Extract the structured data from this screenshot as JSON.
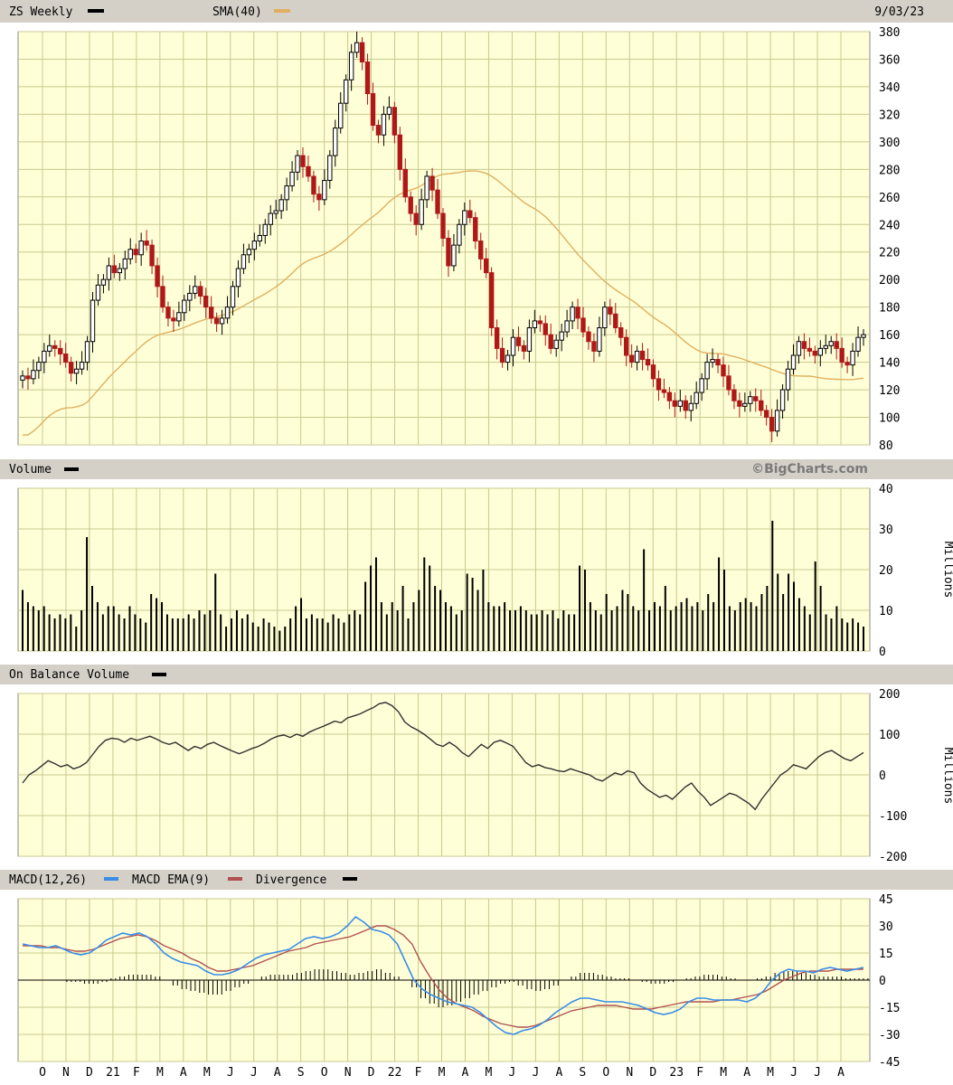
{
  "header": {
    "symbol_label": "ZS Weekly",
    "sma_label": "SMA(40)",
    "date": "9/03/23",
    "watermark": "©BigCharts.com"
  },
  "colors": {
    "up": "#000000",
    "down": "#b01818",
    "sma": "#e0b060",
    "macd": "#3a8de6",
    "macd_ema": "#b05050",
    "plot_bg": "#ffffd7",
    "grid": "#c8c890",
    "header_bg": "#d4d0c8"
  },
  "chart_data": [
    {
      "type": "candlestick",
      "title": "ZS Weekly",
      "series_names": [
        "ZS Weekly",
        "SMA(40)"
      ],
      "ylim": [
        80,
        380
      ],
      "yticks": [
        80,
        100,
        120,
        140,
        160,
        180,
        200,
        220,
        240,
        260,
        280,
        300,
        320,
        340,
        360,
        380
      ],
      "x_month_labels": [
        "O",
        "N",
        "D",
        "21",
        "F",
        "M",
        "A",
        "M",
        "J",
        "J",
        "A",
        "S",
        "O",
        "N",
        "D",
        "22",
        "F",
        "M",
        "A",
        "M",
        "J",
        "J",
        "A",
        "S",
        "O",
        "N",
        "D",
        "23",
        "F",
        "M",
        "A",
        "M",
        "J",
        "J",
        "A"
      ],
      "close_approx": [
        130,
        128,
        134,
        140,
        148,
        152,
        150,
        146,
        140,
        132,
        135,
        140,
        155,
        185,
        196,
        200,
        210,
        205,
        208,
        215,
        222,
        218,
        228,
        225,
        210,
        195,
        180,
        172,
        170,
        176,
        185,
        190,
        195,
        188,
        180,
        172,
        168,
        172,
        180,
        195,
        208,
        218,
        222,
        228,
        232,
        240,
        248,
        250,
        258,
        268,
        278,
        290,
        282,
        275,
        262,
        258,
        272,
        290,
        310,
        328,
        345,
        365,
        372,
        358,
        335,
        312,
        305,
        320,
        325,
        305,
        280,
        260,
        248,
        240,
        258,
        275,
        265,
        248,
        230,
        210,
        225,
        240,
        250,
        245,
        228,
        215,
        205,
        165,
        150,
        140,
        145,
        158,
        152,
        148,
        165,
        170,
        168,
        160,
        150,
        156,
        162,
        170,
        180,
        172,
        162,
        155,
        148,
        165,
        180,
        175,
        165,
        158,
        145,
        140,
        148,
        142,
        138,
        128,
        120,
        118,
        112,
        108,
        112,
        105,
        110,
        118,
        128,
        140,
        142,
        138,
        130,
        120,
        112,
        108,
        110,
        115,
        112,
        105,
        100,
        90,
        105,
        120,
        135,
        145,
        155,
        150,
        148,
        145,
        150,
        152,
        155,
        150,
        140,
        138,
        148,
        158,
        160
      ]
    },
    {
      "type": "bar",
      "title": "Volume",
      "ylabel": "Millions",
      "ylim": [
        0,
        40
      ],
      "yticks": [
        0,
        10,
        20,
        30,
        40
      ],
      "values_approx": [
        15,
        12,
        11,
        10,
        11,
        9,
        8,
        9,
        8,
        9,
        6,
        10,
        28,
        16,
        12,
        9,
        11,
        11,
        9,
        8,
        11,
        9,
        8,
        7,
        14,
        13,
        12,
        9,
        8,
        8,
        8,
        9,
        8,
        10,
        9,
        10,
        19,
        9,
        6,
        8,
        10,
        8,
        9,
        7,
        6,
        8,
        7,
        6,
        5,
        6,
        8,
        11,
        13,
        8,
        9,
        8,
        8,
        7,
        9,
        8,
        7,
        9,
        10,
        9,
        17,
        21,
        23,
        12,
        9,
        12,
        10,
        16,
        8,
        12,
        15,
        23,
        21,
        16,
        15,
        12,
        11,
        9,
        10,
        19,
        18,
        15,
        20,
        12,
        11,
        11,
        12,
        10,
        10,
        11,
        10,
        9,
        9,
        10,
        9,
        10,
        8,
        10,
        9,
        9,
        21,
        20,
        12,
        10,
        9,
        14,
        10,
        11,
        15,
        14,
        11,
        10,
        25,
        10,
        12,
        11,
        16,
        10,
        11,
        12,
        13,
        11,
        12,
        10,
        14,
        12,
        23,
        20,
        11,
        10,
        12,
        13,
        12,
        11,
        14,
        16,
        32,
        19,
        14,
        19,
        17,
        13,
        11,
        9,
        22,
        16,
        9,
        8,
        11,
        8,
        7,
        8,
        7,
        6
      ]
    },
    {
      "type": "line",
      "title": "On Balance Volume",
      "ylabel": "Millions",
      "ylim": [
        -200,
        200
      ],
      "yticks": [
        -200,
        -100,
        0,
        100,
        200
      ],
      "values_approx": [
        -20,
        0,
        10,
        22,
        35,
        28,
        20,
        25,
        15,
        20,
        30,
        50,
        70,
        85,
        90,
        88,
        80,
        90,
        85,
        90,
        95,
        88,
        80,
        75,
        80,
        70,
        60,
        70,
        65,
        75,
        80,
        72,
        65,
        58,
        52,
        58,
        65,
        70,
        78,
        88,
        95,
        98,
        92,
        100,
        95,
        105,
        112,
        118,
        125,
        132,
        128,
        140,
        145,
        150,
        158,
        165,
        175,
        178,
        170,
        155,
        130,
        118,
        110,
        100,
        88,
        75,
        70,
        80,
        70,
        55,
        45,
        60,
        75,
        65,
        80,
        85,
        78,
        70,
        50,
        30,
        20,
        25,
        18,
        15,
        10,
        8,
        15,
        10,
        5,
        0,
        -10,
        -15,
        -5,
        5,
        0,
        10,
        5,
        -20,
        -35,
        -45,
        -55,
        -50,
        -60,
        -45,
        -30,
        -20,
        -40,
        -55,
        -75,
        -65,
        -55,
        -45,
        -50,
        -60,
        -70,
        -85,
        -60,
        -40,
        -20,
        0,
        10,
        25,
        20,
        15,
        30,
        45,
        55,
        60,
        50,
        40,
        35,
        45,
        55
      ]
    },
    {
      "type": "line",
      "title": "MACD(12,26)",
      "series_names": [
        "MACD(12,26)",
        "MACD EMA(9)",
        "Divergence"
      ],
      "ylim": [
        -45,
        45
      ],
      "yticks": [
        -45,
        -30,
        -15,
        0,
        15,
        30,
        45
      ],
      "macd_approx": [
        20,
        19,
        18,
        18,
        19,
        17,
        15,
        14,
        15,
        18,
        22,
        24,
        26,
        25,
        26,
        24,
        20,
        15,
        12,
        10,
        9,
        8,
        5,
        3,
        3,
        4,
        6,
        9,
        12,
        14,
        15,
        16,
        17,
        20,
        23,
        24,
        23,
        24,
        26,
        30,
        35,
        32,
        28,
        27,
        25,
        20,
        10,
        0,
        -5,
        -8,
        -10,
        -12,
        -13,
        -14,
        -15,
        -18,
        -22,
        -26,
        -29,
        -30,
        -28,
        -27,
        -25,
        -22,
        -18,
        -15,
        -12,
        -10,
        -10,
        -11,
        -12,
        -12,
        -12,
        -13,
        -14,
        -16,
        -18,
        -19,
        -18,
        -16,
        -12,
        -10,
        -10,
        -11,
        -11,
        -11,
        -11,
        -12,
        -10,
        -6,
        0,
        4,
        6,
        5,
        5,
        4,
        6,
        7,
        6,
        5,
        6,
        7
      ],
      "ema_approx": [
        19,
        19,
        19,
        18,
        18,
        17,
        16,
        16,
        17,
        19,
        21,
        23,
        24,
        25,
        24,
        22,
        19,
        17,
        15,
        12,
        10,
        7,
        5,
        5,
        6,
        7,
        8,
        10,
        12,
        14,
        16,
        17,
        18,
        20,
        21,
        22,
        23,
        24,
        26,
        28,
        30,
        30,
        28,
        25,
        20,
        10,
        2,
        -5,
        -10,
        -13,
        -15,
        -17,
        -20,
        -22,
        -24,
        -25,
        -26,
        -26,
        -25,
        -23,
        -21,
        -19,
        -17,
        -16,
        -15,
        -14,
        -14,
        -14,
        -15,
        -16,
        -16,
        -16,
        -15,
        -14,
        -13,
        -12,
        -12,
        -12,
        -12,
        -11,
        -11,
        -10,
        -9,
        -8,
        -6,
        -3,
        0,
        2,
        4,
        5,
        5,
        5,
        6,
        6,
        6,
        6
      ],
      "divergence_approx": [
        0,
        0,
        0,
        0,
        0,
        -1,
        -1,
        -2,
        -2,
        -1,
        1,
        2,
        3,
        3,
        3,
        2,
        0,
        -3,
        -5,
        -6,
        -7,
        -8,
        -8,
        -6,
        -4,
        -2,
        0,
        2,
        3,
        3,
        3,
        4,
        5,
        6,
        6,
        5,
        4,
        3,
        4,
        5,
        6,
        4,
        2,
        0,
        -4,
        -10,
        -13,
        -15,
        -14,
        -12,
        -10,
        -8,
        -6,
        -4,
        -2,
        -1,
        -3,
        -5,
        -6,
        -5,
        -3,
        0,
        2,
        4,
        4,
        3,
        2,
        1,
        1,
        0,
        -1,
        -2,
        -2,
        -1,
        0,
        1,
        2,
        3,
        3,
        2,
        1,
        0,
        0,
        1,
        2,
        4,
        5,
        5,
        4,
        3,
        2,
        2,
        2,
        1,
        1,
        1
      ]
    }
  ]
}
